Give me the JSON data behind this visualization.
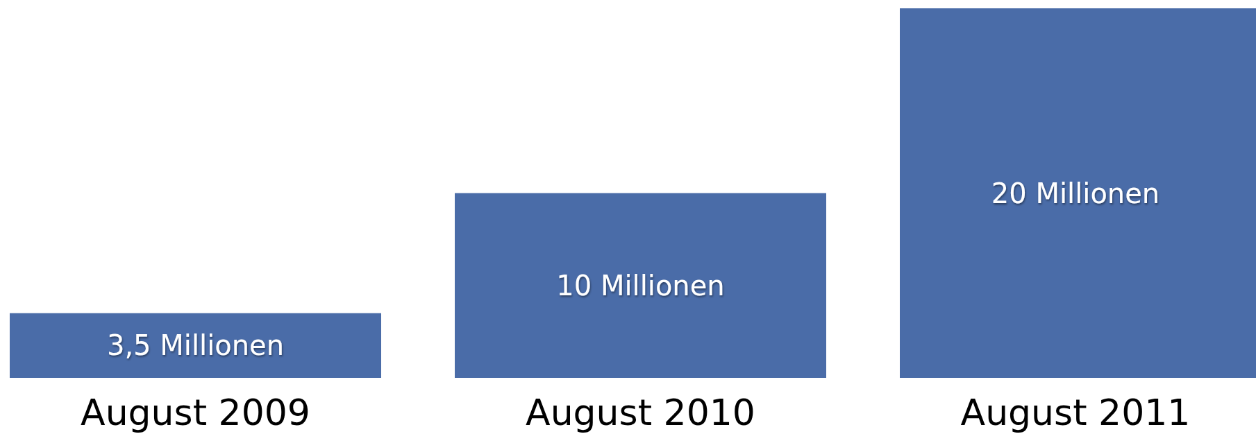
{
  "chart_data": {
    "type": "bar",
    "categories": [
      "August 2009",
      "August 2010",
      "August 2011"
    ],
    "values": [
      3.5,
      10,
      20
    ],
    "color": "#4a6ca8",
    "value_labels": [
      "3,5 Millionen",
      "10 Millionen",
      "20 Millionen"
    ]
  }
}
